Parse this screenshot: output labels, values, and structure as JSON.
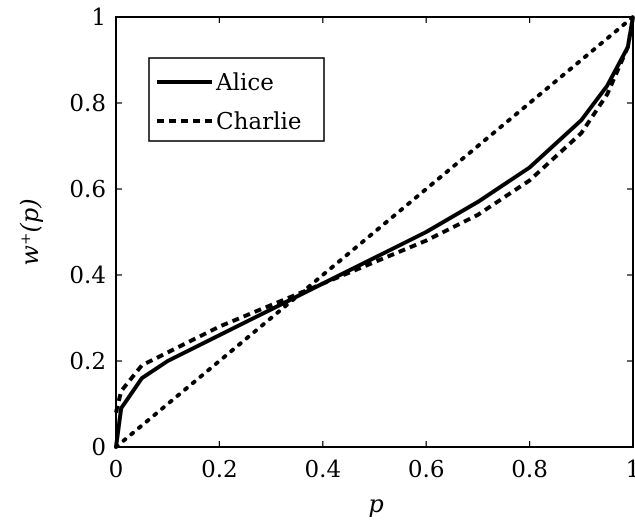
{
  "chart_data": {
    "type": "line",
    "xlabel": "p",
    "ylabel": "w⁺(p)",
    "xlim": [
      0,
      1
    ],
    "ylim": [
      0,
      1
    ],
    "xticks": [
      "0",
      "0.2",
      "0.4",
      "0.6",
      "0.8",
      "1"
    ],
    "yticks": [
      "0",
      "0.2",
      "0.4",
      "0.6",
      "0.8",
      "1"
    ],
    "legend_position": "top-left",
    "grid": false,
    "series": [
      {
        "name": "Alice",
        "style": "solid",
        "x": [
          0,
          0.01,
          0.05,
          0.1,
          0.2,
          0.3,
          0.4,
          0.5,
          0.6,
          0.7,
          0.8,
          0.9,
          0.95,
          0.99,
          1.0
        ],
        "y": [
          0.0,
          0.09,
          0.16,
          0.2,
          0.26,
          0.32,
          0.38,
          0.44,
          0.5,
          0.57,
          0.65,
          0.76,
          0.84,
          0.93,
          1.0
        ]
      },
      {
        "name": "Charlie",
        "style": "dashed",
        "x": [
          0,
          0.01,
          0.05,
          0.1,
          0.2,
          0.3,
          0.4,
          0.5,
          0.6,
          0.7,
          0.8,
          0.9,
          0.95,
          0.99,
          1.0
        ],
        "y": [
          0.08,
          0.13,
          0.19,
          0.22,
          0.28,
          0.33,
          0.38,
          0.43,
          0.48,
          0.54,
          0.62,
          0.73,
          0.82,
          0.93,
          1.0
        ]
      },
      {
        "style": "dotted",
        "x": [
          0,
          1
        ],
        "y": [
          0,
          1
        ]
      }
    ]
  }
}
